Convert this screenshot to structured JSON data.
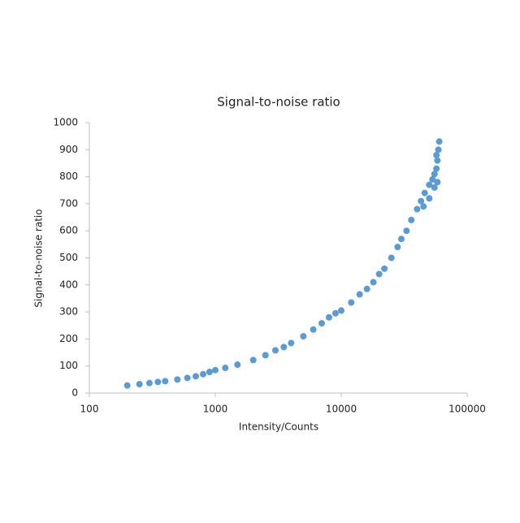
{
  "chart_data": {
    "type": "scatter",
    "title": "Signal-to-noise ratio",
    "x_label": "Intensity/Counts",
    "y_label": "Signal-to-noise ratio",
    "x_scale": "log",
    "xlim": [
      100,
      100000
    ],
    "xticks": [
      100,
      1000,
      10000,
      100000
    ],
    "ylim": [
      0,
      1000
    ],
    "yticks": [
      0,
      100,
      200,
      300,
      400,
      500,
      600,
      700,
      800,
      900,
      1000
    ],
    "grid": false,
    "series": [
      {
        "name": "Signal-to-noise ratio",
        "color": "#5b9bd5",
        "x": [
          200,
          250,
          300,
          350,
          400,
          500,
          600,
          700,
          800,
          900,
          1000,
          1200,
          1500,
          2000,
          2500,
          3000,
          3500,
          4000,
          5000,
          6000,
          7000,
          8000,
          9000,
          10000,
          12000,
          14000,
          16000,
          18000,
          20000,
          22000,
          25000,
          28000,
          30000,
          33000,
          36000,
          40000,
          43000,
          45000,
          46000,
          50000,
          50000,
          53000,
          55000,
          55000,
          57000,
          57000,
          58000,
          58000,
          59000,
          60000
        ],
        "values": [
          28,
          33,
          37,
          41,
          44,
          50,
          56,
          62,
          70,
          78,
          85,
          93,
          105,
          122,
          140,
          158,
          170,
          185,
          210,
          235,
          258,
          280,
          295,
          305,
          335,
          365,
          385,
          410,
          440,
          460,
          500,
          540,
          570,
          600,
          640,
          680,
          710,
          690,
          740,
          770,
          720,
          790,
          810,
          760,
          830,
          880,
          860,
          780,
          900,
          930
        ]
      }
    ]
  }
}
